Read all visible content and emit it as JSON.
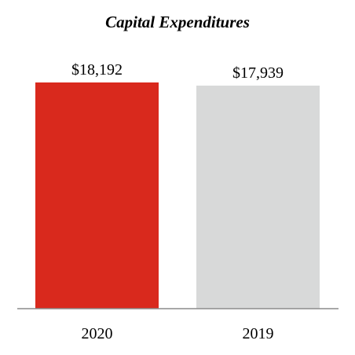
{
  "chart_data": {
    "type": "bar",
    "title": "Capital Expenditures",
    "categories": [
      "2020",
      "2019"
    ],
    "values": [
      18192,
      17939
    ],
    "data_labels": [
      "$18,192",
      "$17,939"
    ],
    "colors": [
      "#d9291d",
      "#d8d9d9"
    ],
    "axis_color": "#8c8c8c",
    "ylim": [
      0,
      18192
    ],
    "grid": false,
    "legend": "none"
  }
}
